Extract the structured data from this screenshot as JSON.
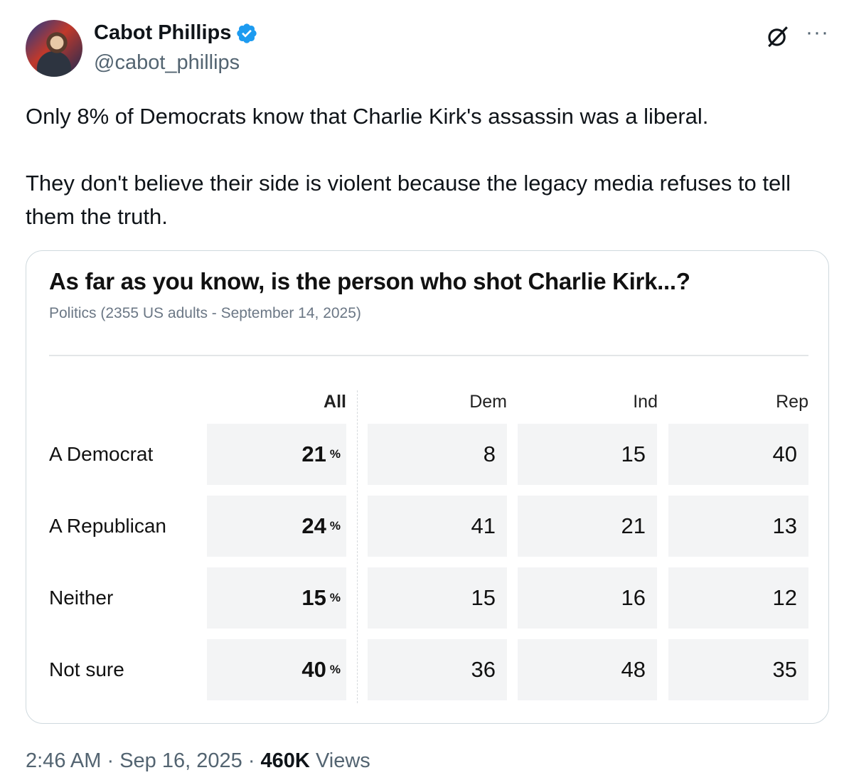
{
  "author": {
    "name": "Cabot Phillips",
    "handle": "@cabot_phillips"
  },
  "tweet": {
    "paragraphs": [
      "Only 8% of Democrats know that Charlie Kirk's assassin was a liberal.",
      "They don't believe their side is violent because the legacy media refuses to tell them the truth."
    ]
  },
  "card": {
    "title": "As far as you know, is the person who shot Charlie Kirk...?",
    "subtitle": "Politics (2355 US adults - September 14, 2025)",
    "columns": [
      "All",
      "Dem",
      "Ind",
      "Rep"
    ],
    "percent_suffix": "%",
    "rows": [
      {
        "label": "A Democrat",
        "all": "21",
        "dem": "8",
        "ind": "15",
        "rep": "40"
      },
      {
        "label": "A Republican",
        "all": "24",
        "dem": "41",
        "ind": "21",
        "rep": "13"
      },
      {
        "label": "Neither",
        "all": "15",
        "dem": "15",
        "ind": "16",
        "rep": "12"
      },
      {
        "label": "Not sure",
        "all": "40",
        "dem": "36",
        "ind": "48",
        "rep": "35"
      }
    ]
  },
  "chart_data": {
    "type": "table",
    "title": "As far as you know, is the person who shot Charlie Kirk...?",
    "subtitle": "Politics (2355 US adults - September 14, 2025)",
    "columns": [
      "All",
      "Dem",
      "Ind",
      "Rep"
    ],
    "rows": [
      "A Democrat",
      "A Republican",
      "Neither",
      "Not sure"
    ],
    "values": [
      [
        21,
        8,
        15,
        40
      ],
      [
        24,
        41,
        21,
        13
      ],
      [
        15,
        15,
        16,
        12
      ],
      [
        40,
        36,
        48,
        35
      ]
    ],
    "unit": "%"
  },
  "meta": {
    "time": "2:46 AM",
    "sep1": "·",
    "date": "Sep 16, 2025",
    "sep2": "·",
    "views_count": "460K",
    "views_label": "Views"
  },
  "icons": {
    "verified": "verified-badge-icon",
    "grok": "grok-icon",
    "more": "more-icon"
  },
  "colors": {
    "verified": "#1d9bf0",
    "secondary_text": "#536471",
    "cell_bg": "#f3f4f5"
  }
}
